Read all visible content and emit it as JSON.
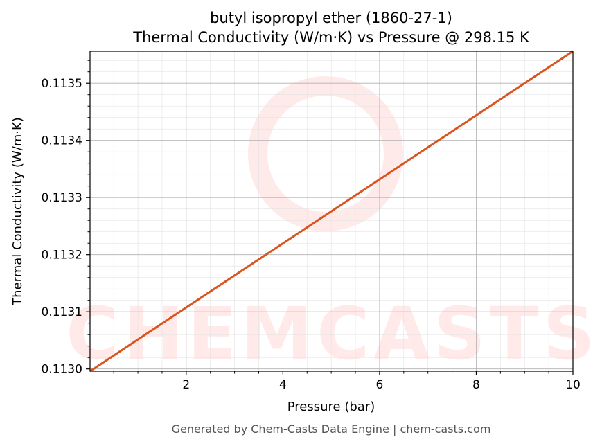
{
  "chart_data": {
    "type": "line",
    "title_line1": "butyl isopropyl ether (1860-27-1)",
    "title_line2": "Thermal Conductivity (W/m·K) vs Pressure @ 298.15 K",
    "xlabel": "Pressure (bar)",
    "ylabel": "Thermal Conductivity (W/m·K)",
    "xlim": [
      0.01,
      10
    ],
    "ylim": [
      0.112996,
      0.113556
    ],
    "xticks": [
      2,
      4,
      6,
      8,
      10
    ],
    "xtick_labels": [
      "2",
      "4",
      "6",
      "8",
      "10"
    ],
    "yticks": [
      0.113,
      0.1131,
      0.1132,
      0.1133,
      0.1134,
      0.1135
    ],
    "ytick_labels": [
      "0.1130",
      "0.1131",
      "0.1132",
      "0.1133",
      "0.1134",
      "0.1135"
    ],
    "grid": true,
    "line_color": "#d9541e",
    "series": [
      {
        "x": [
          0.01,
          10
        ],
        "y": [
          0.112996,
          0.113556
        ]
      }
    ],
    "watermark": "CHEMCASTS"
  },
  "footer": "Generated by Chem-Casts Data Engine | chem-casts.com"
}
